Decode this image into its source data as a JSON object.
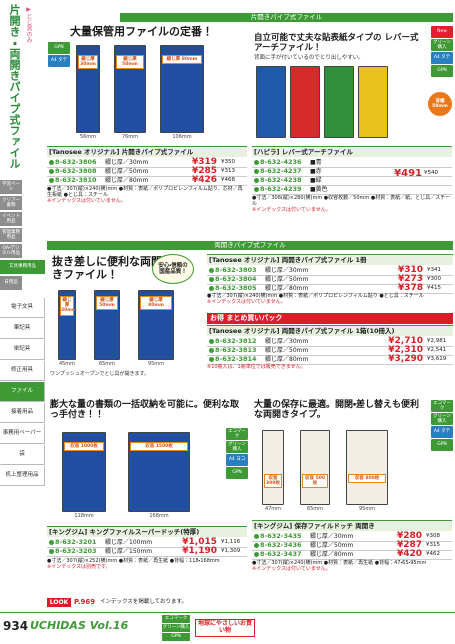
{
  "sidebar": {
    "title": "片開き・両開きパイプ式ファイル",
    "sub": "▶とじ具のみ",
    "tabs": [
      "学習ページ",
      "クリアー書類",
      "イベント用品",
      "管理業務用品",
      "OA・デジタル用品",
      "文具事務用品",
      "日用品"
    ],
    "links": [
      "電子文具",
      "筆記具",
      "単記具",
      "修正用具",
      "ファイル",
      "接着用品",
      "事務用ペーパー",
      "袋",
      "机上整理用品"
    ]
  },
  "bands": {
    "top": "片開きパイプ式ファイル",
    "middle": "両開きパイプ式ファイル"
  },
  "blocks": [
    {
      "badges": [
        "GPN",
        "A4 タテ"
      ],
      "headline": "大量保管用ファイルの定番！",
      "image_labels": [
        "綴じ厚 30mm",
        "綴じ厚 50mm",
        "綴じ厚 80mm"
      ],
      "dims": [
        "56mm",
        "76mm",
        "106mm"
      ],
      "product": "[Tanosee オリジナル] 片開きパイプ式ファイル",
      "rows": [
        [
          "8-632-3806",
          "綴じ厚／30mm",
          "¥319",
          "¥350"
        ],
        [
          "8-632-3808",
          "綴じ厚／50mm",
          "¥285",
          "¥313"
        ],
        [
          "8-632-3810",
          "綴じ厚／80mm",
          "¥426",
          "¥468"
        ]
      ],
      "notes": [
        "●寸法／307(縦)×240(横)mm ●材質：表紙／ポリプロピレンフィルム貼り、芯材／再生板紙 ●とじ具：スチール",
        "※インデックスは付いていません。"
      ]
    },
    {
      "badges": [
        "New",
        "グリーン購入",
        "A4 タテ",
        "GPN"
      ],
      "headline": "自立可能で丈夫な貼表紙タイプの レバー式アーチファイル！",
      "sub": "背面に手が付いているのでとり出しやすい。",
      "image_labels": [
        "背幅 58mm"
      ],
      "product": "[ハピラ] レバー式アーチファイル",
      "rows": [
        [
          "8-632-4236",
          "■青"
        ],
        [
          "8-632-4237",
          "■赤"
        ],
        [
          "8-632-4238",
          "■緑"
        ],
        [
          "8-632-4239",
          "■黄色"
        ]
      ],
      "price": [
        "¥491",
        "¥540"
      ],
      "notes": [
        "●寸法／308(縦)×280(横)mm ●収容枚数／50mm ●材質：表紙／紙、とじ具／スチール",
        "※インデックスは付いていません。"
      ]
    },
    {
      "headline": "抜き差しに便利な両開きファイル！",
      "callout": "安心・信頼の国産品質！",
      "image_labels": [
        "綴じ厚 30mm",
        "綴じ厚 50mm",
        "綴じ厚 80mm"
      ],
      "dims": [
        "45mm",
        "65mm",
        "95mm"
      ],
      "caption": "ワンプッシュオープンでとじ具が開きます。"
    },
    {
      "product": "[Tanosee オリジナル] 両開きパイプ式ファイル 1冊",
      "rows": [
        [
          "8-632-3803",
          "綴じ厚／30mm",
          "¥310",
          "¥341"
        ],
        [
          "8-632-3804",
          "綴じ厚／50mm",
          "¥273",
          "¥300"
        ],
        [
          "8-632-3805",
          "綴じ厚／80mm",
          "¥378",
          "¥415"
        ]
      ],
      "notes": [
        "●寸法／307(縦)×240(横)mm ●材質：表紙／ポリプロピレンフィルム貼り ●とじ具：スチール",
        "※インデックスは付いていません。"
      ],
      "pack": {
        "label": "お得 まとめ買いパック",
        "product": "[Tanosee オリジナル] 両開きパイプ式ファイル 1箱(10冊入)",
        "rows": [
          [
            "8-632-3812",
            "綴じ厚／30mm",
            "¥2,710",
            "¥2,981"
          ],
          [
            "8-632-3813",
            "綴じ厚／50mm",
            "¥2,310",
            "¥2,541"
          ],
          [
            "8-632-3814",
            "綴じ厚／80mm",
            "¥3,290",
            "¥3,619"
          ]
        ],
        "notes": [
          "※10冊入は、1冊単位では販売できません。"
        ]
      }
    },
    {
      "badges": [
        "エコマーク",
        "グリーン購入",
        "A4 ヨコ",
        "GPN"
      ],
      "headline": "膨大な量の書類の一括収納を可能に。便利な取っ手付き！！",
      "image_labels": [
        "収容 1000枚",
        "収容 1500枚"
      ],
      "dims": [
        "118mm",
        "168mm"
      ],
      "product": "[キングジム] キングファイルスーパードッチ(特厚)",
      "rows": [
        [
          "8-632-3201",
          "綴じ厚／100mm",
          "¥1,015",
          "¥1,116"
        ],
        [
          "8-632-3203",
          "綴じ厚／150mm",
          "¥1,190",
          "¥1,309"
        ]
      ],
      "notes": [
        "●寸法／307(縦)×252(横)mm ●材質：表紙／再生紙 ●背幅：118・168mm",
        "※インデックスは別売です。"
      ]
    },
    {
      "badges": [
        "エコマーク",
        "グリーン購入",
        "A4 タテ",
        "GPN"
      ],
      "headline": "大量の保存に最適。開閉・差し替えも便利な両開きタイプ。",
      "image_labels": [
        "収容 300枚",
        "収容 500枚",
        "収容 800枚"
      ],
      "dims": [
        "47mm",
        "65mm",
        "95mm"
      ],
      "product": "[キングジム] 保存ファイルドッチ 両開き",
      "rows": [
        [
          "8-632-3435",
          "綴じ厚／30mm",
          "¥280",
          "¥308"
        ],
        [
          "8-632-3436",
          "綴じ厚／50mm",
          "¥287",
          "¥315"
        ],
        [
          "8-632-3437",
          "綴じ厚／80mm",
          "¥420",
          "¥462"
        ]
      ],
      "notes": [
        "●寸法／307(縦)×240(横)mm ●材質：表紙／再生紙 ●背幅：47・65・95mm",
        "※インデックスは付いていません。"
      ]
    }
  ],
  "look": {
    "tag": "LOOK",
    "page": "P.969",
    "text": "インデックスを掲載しております。"
  },
  "footer": {
    "page_number": "934",
    "brand": "UCHIDAS Vol.16",
    "legend": [
      "エコマーク",
      "グリーン購入",
      "GPN"
    ],
    "slogan": "地球にやさしいお買い物"
  }
}
